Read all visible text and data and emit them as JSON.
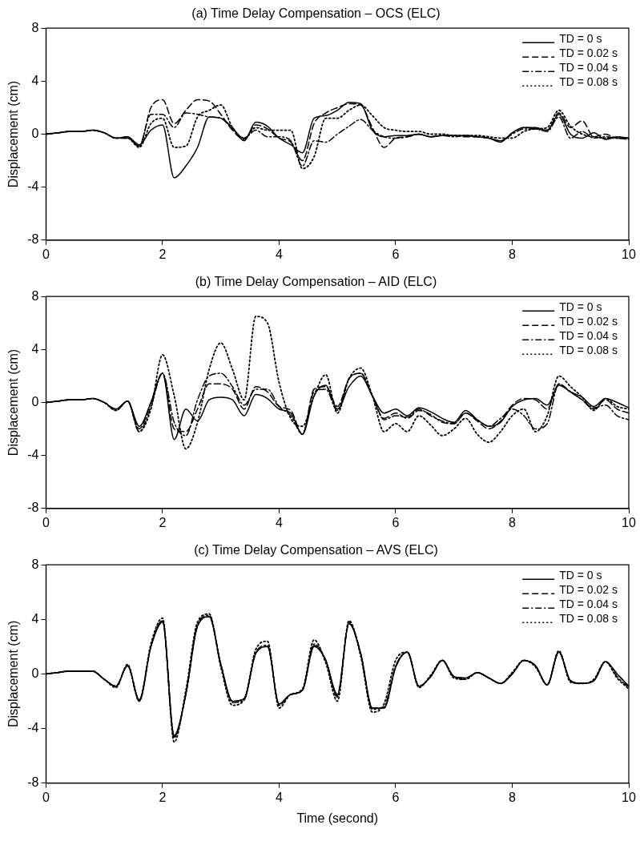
{
  "chart_data": [
    {
      "type": "line",
      "title": "(a) Time Delay Compensation – OCS (ELC)",
      "ylabel": "Displacement (cm)",
      "legend": "top right",
      "xlim": [
        0,
        10
      ],
      "ylim": [
        -8,
        8
      ],
      "xticks": [
        0,
        2,
        4,
        6,
        8,
        10
      ],
      "yticks": [
        -8,
        -4,
        0,
        4,
        8
      ],
      "x": [
        0,
        0.2,
        0.4,
        0.6,
        0.8,
        1,
        1.2,
        1.4,
        1.6,
        1.8,
        2,
        2.2,
        2.4,
        2.6,
        2.8,
        3,
        3.2,
        3.4,
        3.6,
        3.8,
        4,
        4.2,
        4.4,
        4.6,
        4.8,
        5,
        5.2,
        5.4,
        5.6,
        5.8,
        6,
        6.2,
        6.4,
        6.6,
        6.8,
        7,
        7.2,
        7.4,
        7.6,
        7.8,
        8,
        8.2,
        8.4,
        8.6,
        8.8,
        9,
        9.2,
        9.4,
        9.6,
        9.8,
        10
      ],
      "series": [
        {
          "name": "TD = 0 s",
          "color": "#000000",
          "line_style": "solid",
          "values": [
            0,
            0.1,
            0.2,
            0.2,
            0.3,
            0.1,
            -0.3,
            -0.2,
            -0.8,
            0.3,
            0.7,
            -3.3,
            -2.4,
            -1.0,
            1.3,
            1.2,
            0.5,
            -0.5,
            0.9,
            0.6,
            -0.3,
            -0.8,
            -1.4,
            1.2,
            1.4,
            1.8,
            2.4,
            2.3,
            0.3,
            -0.2,
            -0.1,
            -0.1,
            0,
            -0.2,
            -0.1,
            -0.1,
            -0.1,
            -0.2,
            -0.3,
            -0.6,
            0.1,
            0.5,
            0.5,
            0.3,
            1.5,
            0,
            -0.3,
            0.1,
            -0.4,
            -0.2,
            -0.3
          ]
        },
        {
          "name": "TD = 0.02 s",
          "color": "#000000",
          "line_style": "dashed",
          "values": [
            0,
            0.1,
            0.2,
            0.2,
            0.3,
            0.1,
            -0.3,
            -0.2,
            -0.9,
            2.0,
            2.6,
            0.8,
            1.8,
            2.6,
            2.5,
            1.5,
            0.3,
            -0.4,
            0.7,
            0.4,
            -0.3,
            -0.6,
            -2.0,
            0.8,
            1.6,
            2.0,
            2.3,
            2.2,
            0.5,
            -1.0,
            -0.3,
            -0.2,
            0,
            -0.2,
            -0.1,
            -0.1,
            -0.2,
            -0.2,
            -0.3,
            -0.5,
            0.1,
            0.5,
            0.4,
            0.3,
            1.6,
            0.5,
            1.0,
            -0.2,
            0,
            -0.3,
            -0.3
          ]
        },
        {
          "name": "TD = 0.04 s",
          "color": "#000000",
          "line_style": "dashdot",
          "values": [
            0,
            0.1,
            0.2,
            0.2,
            0.3,
            0.1,
            -0.3,
            -0.3,
            -0.9,
            1.5,
            1.5,
            0.5,
            1.6,
            1.5,
            1.3,
            1.2,
            0.4,
            -0.3,
            0.3,
            -0.2,
            -0.2,
            -0.5,
            -2.4,
            -0.5,
            -0.6,
            0,
            0.6,
            1.1,
            0.3,
            -0.2,
            -0.3,
            -0.2,
            0,
            -0.2,
            -0.1,
            -0.2,
            -0.1,
            -0.2,
            -0.3,
            -0.5,
            0,
            0.4,
            0.4,
            0.2,
            1.3,
            -0.3,
            0.2,
            -0.3,
            -0.2,
            -0.3,
            -0.4
          ]
        },
        {
          "name": "TD = 0.08 s",
          "color": "#000000",
          "line_style": "dotted",
          "values": [
            0,
            0.1,
            0.2,
            0.2,
            0.3,
            0.1,
            -0.3,
            -0.3,
            -1.0,
            0.8,
            1.2,
            -1.0,
            -0.9,
            1.3,
            1.8,
            2.2,
            0.5,
            -0.3,
            0.5,
            0.3,
            0.3,
            0.3,
            -2.6,
            -1.7,
            1.2,
            1.2,
            1.8,
            2.2,
            1.4,
            0.5,
            0.3,
            0.2,
            0.2,
            0,
            0,
            -0.1,
            -0.1,
            -0.1,
            -0.2,
            -0.3,
            -0.3,
            0.2,
            0.4,
            0.5,
            1.8,
            0.6,
            0,
            -0.2,
            -0.3,
            -0.3,
            -0.3
          ]
        }
      ]
    },
    {
      "type": "line",
      "title": "(b) Time Delay Compensation – AID (ELC)",
      "ylabel": "Displacement (cm)",
      "legend": "top right",
      "xlim": [
        0,
        10
      ],
      "ylim": [
        -8,
        8
      ],
      "xticks": [
        0,
        2,
        4,
        6,
        8,
        10
      ],
      "yticks": [
        -8,
        -4,
        0,
        4,
        8
      ],
      "x": [
        0,
        0.2,
        0.4,
        0.6,
        0.8,
        1,
        1.2,
        1.4,
        1.6,
        1.8,
        2,
        2.2,
        2.4,
        2.6,
        2.8,
        3,
        3.2,
        3.4,
        3.6,
        3.8,
        4,
        4.2,
        4.4,
        4.6,
        4.8,
        5,
        5.2,
        5.4,
        5.6,
        5.8,
        6,
        6.2,
        6.4,
        6.6,
        6.8,
        7,
        7.2,
        7.4,
        7.6,
        7.8,
        8,
        8.2,
        8.4,
        8.6,
        8.8,
        9,
        9.2,
        9.4,
        9.6,
        9.8,
        10
      ],
      "series": [
        {
          "name": "TD = 0 s",
          "color": "#000000",
          "line_style": "solid",
          "values": [
            0,
            0.1,
            0.2,
            0.2,
            0.3,
            0,
            -0.5,
            0.1,
            -1.8,
            0,
            2.2,
            -2.8,
            -0.5,
            -1.4,
            0.2,
            0.4,
            0.2,
            -1.0,
            0.6,
            0.3,
            -0.5,
            -0.8,
            -2.4,
            0.5,
            1.3,
            -0.5,
            1.2,
            2.0,
            0.5,
            -0.8,
            -0.5,
            -1.0,
            -0.4,
            -0.7,
            -1.2,
            -1.5,
            -0.6,
            -1.3,
            -1.8,
            -1.5,
            -0.3,
            0.2,
            0.3,
            -0.2,
            1.3,
            0.8,
            0.4,
            -0.3,
            0.3,
            0,
            -0.4
          ]
        },
        {
          "name": "TD = 0.02 s",
          "color": "#000000",
          "line_style": "dashed",
          "values": [
            0,
            0.1,
            0.2,
            0.2,
            0.3,
            0,
            -0.5,
            0.1,
            -2.0,
            0,
            2.2,
            -2.0,
            -2.2,
            -0.5,
            1.4,
            1.4,
            1.0,
            -0.5,
            1.2,
            0.8,
            -0.3,
            -0.6,
            -2.4,
            1.0,
            1.2,
            -0.3,
            1.8,
            2.2,
            0.5,
            -1.2,
            -0.8,
            -1.2,
            -0.6,
            -0.9,
            -1.5,
            -1.6,
            -0.8,
            -1.4,
            -2.0,
            -1.4,
            -0.2,
            0.3,
            0.2,
            -0.5,
            1.4,
            0.8,
            0.2,
            -0.5,
            0.2,
            -0.5,
            -0.8
          ]
        },
        {
          "name": "TD = 0.04 s",
          "color": "#000000",
          "line_style": "dashdot",
          "values": [
            0,
            0.1,
            0.2,
            0.2,
            0.3,
            0,
            -0.6,
            0.1,
            -2.2,
            -0.3,
            2.2,
            -1.5,
            -2.5,
            0.2,
            2.0,
            2.2,
            1.2,
            -0.2,
            1.0,
            1.0,
            -0.3,
            -1.0,
            -2.4,
            0.8,
            1.0,
            -0.6,
            1.8,
            2.2,
            0.5,
            -1.3,
            -1.0,
            -1.1,
            -0.5,
            -1.0,
            -1.4,
            -1.6,
            -0.8,
            -1.3,
            -1.8,
            -1.2,
            -0.5,
            -1.0,
            -2.0,
            -1.6,
            1.4,
            0.8,
            0.2,
            -0.4,
            -0.2,
            -1.0,
            -1.3
          ]
        },
        {
          "name": "TD = 0.08 s",
          "color": "#000000",
          "line_style": "dotted",
          "values": [
            0,
            0.1,
            0.2,
            0.2,
            0.3,
            0,
            -0.6,
            0.1,
            -2.2,
            -0.5,
            3.6,
            0.5,
            -3.5,
            -1.5,
            2.5,
            4.5,
            2.5,
            0.2,
            6.5,
            6.0,
            1.5,
            -1.2,
            -1.8,
            0.5,
            2.1,
            -0.8,
            1.8,
            2.6,
            0.5,
            -2.2,
            -1.6,
            -2.2,
            -1.0,
            -1.7,
            -2.5,
            -2.0,
            -1.2,
            -2.4,
            -3.0,
            -2.2,
            -1.0,
            -0.5,
            -2.2,
            -1.0,
            2.0,
            1.2,
            0.4,
            -0.6,
            0.3,
            -0.3,
            -0.5
          ]
        }
      ]
    },
    {
      "type": "line",
      "title": "(c) Time Delay Compensation – AVS (ELC)",
      "xlabel": "Time (second)",
      "ylabel": "Displacement (cm)",
      "legend": "top right",
      "xlim": [
        0,
        10
      ],
      "ylim": [
        -8,
        8
      ],
      "xticks": [
        0,
        2,
        4,
        6,
        8,
        10
      ],
      "yticks": [
        -8,
        -4,
        0,
        4,
        8
      ],
      "x": [
        0,
        0.2,
        0.4,
        0.6,
        0.8,
        1,
        1.2,
        1.4,
        1.6,
        1.8,
        2,
        2.2,
        2.4,
        2.6,
        2.8,
        3,
        3.2,
        3.4,
        3.6,
        3.8,
        4,
        4.2,
        4.4,
        4.6,
        4.8,
        5,
        5.2,
        5.4,
        5.6,
        5.8,
        6,
        6.2,
        6.4,
        6.6,
        6.8,
        7,
        7.2,
        7.4,
        7.6,
        7.8,
        8,
        8.2,
        8.4,
        8.6,
        8.8,
        9,
        9.2,
        9.4,
        9.6,
        9.8,
        10
      ],
      "series": [
        {
          "name": "TD = 0 s",
          "color": "#000000",
          "line_style": "solid",
          "values": [
            0,
            0.1,
            0.2,
            0.2,
            0.2,
            -0.4,
            -0.9,
            0.6,
            -1.9,
            2.0,
            3.8,
            -4.5,
            -1.5,
            3.5,
            4.2,
            0.7,
            -2.0,
            -1.8,
            1.5,
            2.0,
            -2.2,
            -1.5,
            -1.2,
            2.0,
            1.0,
            -1.5,
            3.7,
            1.5,
            -2.5,
            -2.5,
            0.5,
            1.6,
            -0.9,
            -0.2,
            1.0,
            -0.2,
            -0.3,
            0.1,
            -0.3,
            -0.7,
            0,
            1.0,
            0.6,
            -0.8,
            1.6,
            -0.5,
            -0.7,
            -0.5,
            0.9,
            0,
            -0.9
          ]
        },
        {
          "name": "TD = 0.02 s",
          "color": "#000000",
          "line_style": "dashed",
          "values": [
            0,
            0.1,
            0.2,
            0.2,
            0.2,
            -0.4,
            -0.9,
            0.6,
            -1.9,
            2.0,
            3.9,
            -4.6,
            -1.5,
            3.5,
            4.2,
            0.7,
            -2.0,
            -1.8,
            1.5,
            2.0,
            -2.2,
            -1.5,
            -1.2,
            2.1,
            1.0,
            -1.6,
            3.7,
            1.5,
            -2.5,
            -2.5,
            0.5,
            1.6,
            -0.9,
            -0.2,
            1.0,
            -0.2,
            -0.3,
            0.1,
            -0.3,
            -0.7,
            0,
            1.0,
            0.6,
            -0.8,
            1.6,
            -0.5,
            -0.7,
            -0.5,
            0.9,
            0,
            -0.9
          ]
        },
        {
          "name": "TD = 0.04 s",
          "color": "#000000",
          "line_style": "dashdot",
          "values": [
            0,
            0.1,
            0.2,
            0.2,
            0.2,
            -0.4,
            -0.9,
            0.6,
            -2.0,
            2.0,
            3.9,
            -4.7,
            -1.4,
            3.6,
            4.3,
            0.7,
            -2.1,
            -1.9,
            1.6,
            2.1,
            -2.3,
            -1.5,
            -1.2,
            2.2,
            1.0,
            -1.7,
            3.8,
            1.5,
            -2.6,
            -2.4,
            0.6,
            1.6,
            -0.9,
            -0.2,
            1.0,
            -0.2,
            -0.4,
            0.1,
            -0.3,
            -0.7,
            0,
            1.0,
            0.6,
            -0.8,
            1.6,
            -0.5,
            -0.7,
            -0.5,
            0.9,
            -0.2,
            -1.0
          ]
        },
        {
          "name": "TD = 0.08 s",
          "color": "#000000",
          "line_style": "dotted",
          "values": [
            0,
            0.1,
            0.2,
            0.2,
            0.2,
            -0.4,
            -1.0,
            0.7,
            -2.0,
            2.2,
            4.1,
            -5.0,
            -1.2,
            3.8,
            4.4,
            0.5,
            -2.3,
            -1.9,
            1.8,
            2.4,
            -2.5,
            -1.5,
            -1.1,
            2.5,
            0.8,
            -2.0,
            3.9,
            1.3,
            -2.8,
            -2.2,
            1.0,
            1.6,
            -1.0,
            -0.1,
            1.0,
            -0.3,
            -0.4,
            0.1,
            -0.3,
            -0.7,
            0.1,
            1.0,
            0.5,
            -0.8,
            1.7,
            -0.6,
            -0.7,
            -0.4,
            0.9,
            -0.3,
            -1.1
          ]
        }
      ]
    }
  ]
}
